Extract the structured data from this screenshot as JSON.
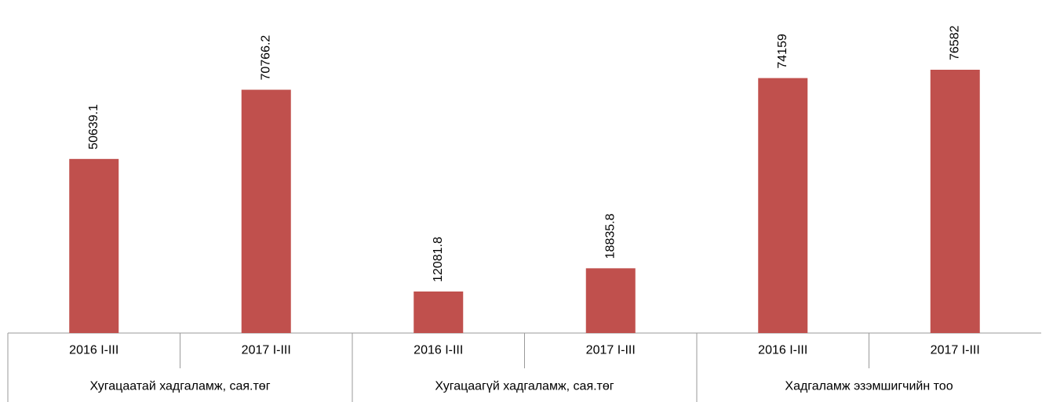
{
  "chart_data": {
    "type": "bar",
    "groups": [
      "Хугацаатай хадгаламж, сая.төг",
      "Хугацаагүй хадгаламж, сая.төг",
      "Хадгаламж эзэмшигчийн тоо"
    ],
    "categories": [
      "2016 I-III",
      "2017 I-III",
      "2016 I-III",
      "2017 I-III",
      "2016 I-III",
      "2017 I-III"
    ],
    "values": [
      50639.1,
      70766.2,
      12081.8,
      18835.8,
      74159,
      76582
    ],
    "color": "#c0504d"
  }
}
